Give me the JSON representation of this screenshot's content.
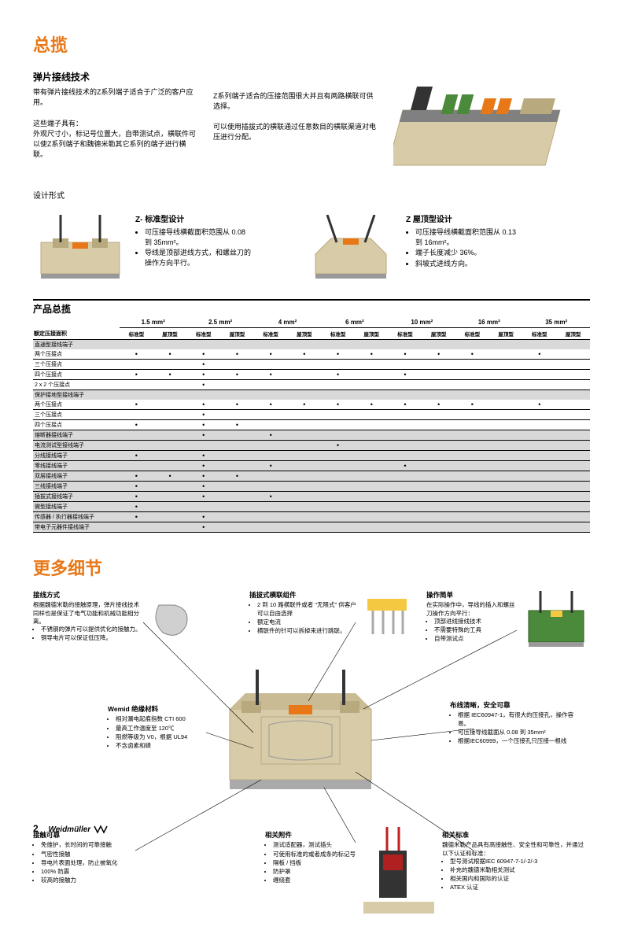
{
  "page": {
    "number": "2",
    "brand": "Weidmüller"
  },
  "titles": {
    "overview": "总揽",
    "tech": "弹片接线技术",
    "moreDetails": "更多细节",
    "productOverview": "产品总揽",
    "designForm": "设计形式"
  },
  "intro": {
    "p1": "带有弹片接线技术的Z系列端子适合于广泛的客户应用。",
    "p2a": "这些端子具有：",
    "p2b": "外观尺寸小，标记号位置大，自带测试点，横联件可以使Z系列端子和魏德米勒其它系列的端子进行横联。",
    "p3": "Z系列端子适合的压接范围很大并且有两路横联可供选择。",
    "p4": "可以使用插拔式的横联通过任意数目的横联渠道对电压进行分配。"
  },
  "designs": {
    "z": {
      "head": "Z- 标准型设计",
      "b1": "可压接导线横截面积范围从 0.08 到 35mm²。",
      "b2": "导线是顶部进线方式，和螺丝刀的操作方向平行。"
    },
    "roof": {
      "head": "Z 屋顶型设计",
      "b1": "可压接导线横截面积范围从 0.13 到 16mm²。",
      "b2": "端子长度减少 36%。",
      "b3": "斜坡式进线方向。"
    }
  },
  "table": {
    "rowHeader": "额定压接面积",
    "sizes": [
      "1.5 mm²",
      "2.5 mm²",
      "4 mm²",
      "6 mm²",
      "10 mm²",
      "16 mm²",
      "35 mm²"
    ],
    "subcols": [
      "标准型",
      "屋顶型"
    ],
    "groups": [
      {
        "hdr": "直通型接线端子",
        "rows": [
          {
            "lbl": "两个压接点",
            "d": [
              1,
              1,
              1,
              1,
              1,
              1,
              1,
              1,
              1,
              1,
              1,
              0,
              1,
              0
            ]
          },
          {
            "lbl": "三个压接点",
            "d": [
              0,
              0,
              1,
              0,
              0,
              0,
              0,
              0,
              0,
              0,
              0,
              0,
              0,
              0
            ]
          },
          {
            "lbl": "四个压接点",
            "d": [
              1,
              1,
              1,
              1,
              1,
              0,
              1,
              0,
              1,
              0,
              0,
              0,
              0,
              0
            ]
          },
          {
            "lbl": "2 x 2 个压接点",
            "d": [
              0,
              0,
              1,
              0,
              0,
              0,
              0,
              0,
              0,
              0,
              0,
              0,
              0,
              0
            ]
          }
        ]
      },
      {
        "hdr": "保护接地型接线端子",
        "rows": [
          {
            "lbl": "两个压接点",
            "d": [
              1,
              0,
              1,
              1,
              1,
              1,
              1,
              1,
              1,
              1,
              1,
              0,
              1,
              0
            ]
          },
          {
            "lbl": "三个压接点",
            "d": [
              0,
              0,
              1,
              0,
              0,
              0,
              0,
              0,
              0,
              0,
              0,
              0,
              0,
              0
            ]
          },
          {
            "lbl": "四个压接点",
            "d": [
              1,
              0,
              1,
              1,
              0,
              0,
              0,
              0,
              0,
              0,
              0,
              0,
              0,
              0
            ]
          }
        ]
      },
      {
        "hdr": "熔断器接线端子",
        "rows": [
          {
            "lbl": "",
            "d": [
              0,
              0,
              1,
              0,
              1,
              0,
              0,
              0,
              0,
              0,
              0,
              0,
              0,
              0
            ]
          }
        ]
      },
      {
        "hdr": "电流测试型接线端子",
        "rows": [
          {
            "lbl": "",
            "d": [
              0,
              0,
              0,
              0,
              0,
              0,
              1,
              0,
              0,
              0,
              0,
              0,
              0,
              0
            ]
          }
        ]
      },
      {
        "hdr": "分线接线端子",
        "rows": [
          {
            "lbl": "",
            "d": [
              1,
              0,
              1,
              0,
              0,
              0,
              0,
              0,
              0,
              0,
              0,
              0,
              0,
              0
            ]
          }
        ]
      },
      {
        "hdr": "零线接线端子",
        "rows": [
          {
            "lbl": "",
            "d": [
              0,
              0,
              1,
              0,
              1,
              0,
              0,
              0,
              1,
              0,
              0,
              0,
              0,
              0
            ]
          }
        ]
      },
      {
        "hdr": "双层接线端子",
        "rows": [
          {
            "lbl": "",
            "d": [
              1,
              1,
              1,
              1,
              0,
              0,
              0,
              0,
              0,
              0,
              0,
              0,
              0,
              0
            ]
          }
        ]
      },
      {
        "hdr": "三线接线端子",
        "rows": [
          {
            "lbl": "",
            "d": [
              1,
              0,
              1,
              0,
              0,
              0,
              0,
              0,
              0,
              0,
              0,
              0,
              0,
              0
            ]
          }
        ]
      },
      {
        "hdr": "插拔式接线端子",
        "rows": [
          {
            "lbl": "",
            "d": [
              1,
              0,
              1,
              0,
              1,
              0,
              0,
              0,
              0,
              0,
              0,
              0,
              0,
              0
            ]
          }
        ]
      },
      {
        "hdr": "微型接线端子",
        "rows": [
          {
            "lbl": "",
            "d": [
              1,
              0,
              0,
              0,
              0,
              0,
              0,
              0,
              0,
              0,
              0,
              0,
              0,
              0
            ]
          }
        ]
      },
      {
        "hdr": "传感器 / 执行器接线端子",
        "rows": [
          {
            "lbl": "",
            "d": [
              1,
              0,
              1,
              0,
              0,
              0,
              0,
              0,
              0,
              0,
              0,
              0,
              0,
              0
            ]
          }
        ]
      },
      {
        "hdr": "带电子元器件接线端子",
        "rows": [
          {
            "lbl": "",
            "d": [
              0,
              0,
              1,
              0,
              0,
              0,
              0,
              0,
              0,
              0,
              0,
              0,
              0,
              0
            ]
          }
        ]
      }
    ]
  },
  "callouts": {
    "c1": {
      "h": "接线方式",
      "t": "根据魏德米勒的接触原理，弹片接线技术同样也是保证了电气功能和机械功能相分离。",
      "b": [
        "不锈钢的弹片可以提供优化的接触力。",
        "铜导电片可以保证低压降。"
      ]
    },
    "c2": {
      "h": "插拔式横联组件",
      "b": [
        "2 到 10 路横联件或者 \"无限式\" 供客户可以自由选择",
        "额定电流",
        "横联件的针可以拆掉来进行跳联。"
      ]
    },
    "c3": {
      "h": "操作简单",
      "t": "在实际操作中，导线的插入和螺丝刀操作方向平行：",
      "b": [
        "顶部进线接线技术",
        "不需要特殊的工具",
        "自带测试点"
      ]
    },
    "c4": {
      "h": "Wemid 绝缘材料",
      "b": [
        "相对漏电起痕指数 CTI 600",
        "最高工作温度至 120℃",
        "阻燃等级为 V0，根据 UL94",
        "不含卤素和磷"
      ]
    },
    "c5": {
      "h": "布线清晰，安全可靠",
      "b": [
        "根据 IEC60947-1，有很大的压接孔，操作容易。",
        "可压接导线截面从 0.08 到 35mm²",
        "根据IEC60999，一个压接孔只压接一根线"
      ]
    },
    "c6": {
      "h": "接触可靠",
      "b": [
        "免维护，长时间的可靠接触",
        "气密性接触",
        "导电片表面处理，防止被氧化",
        "100% 防震",
        "较高的接触力"
      ]
    },
    "c7": {
      "h": "相关附件",
      "b": [
        "测试适配器，测试插头",
        "可使用标准的或者成条的标记号",
        "隔板 / 挡板",
        "防护罩",
        "缠绕套"
      ]
    },
    "c8": {
      "h": "相关标准",
      "t": "魏德米勒产品具有高接触性、安全性和可靠性，并通过以下认证和标准：",
      "b": [
        "型号测试根据IEC 60947-7-1/-2/-3",
        "补充的魏德米勒相关测试",
        "相关国内和国际的认证",
        "ATEX 认证"
      ]
    }
  },
  "colors": {
    "orange": "#e87817",
    "beige": "#d8cba8",
    "darkBeige": "#b8a97e",
    "green": "#4a8a3a",
    "yellow": "#f5c842",
    "gray": "#d9d9d9"
  }
}
